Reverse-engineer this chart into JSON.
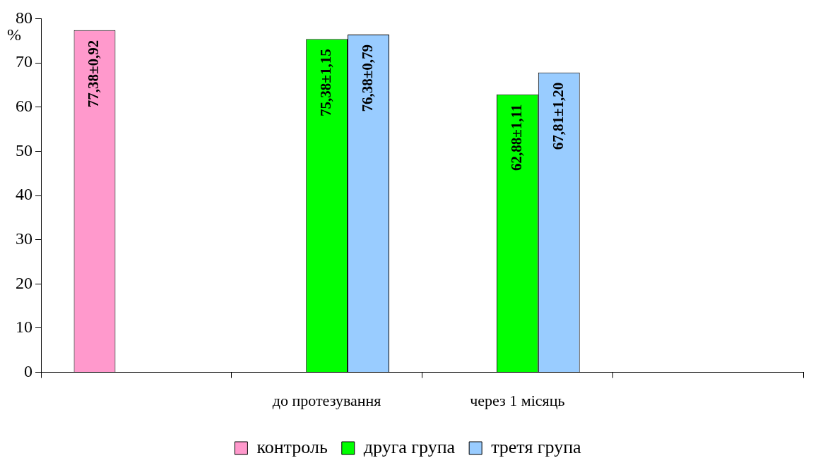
{
  "chart_data": {
    "type": "bar",
    "ylabel": "%",
    "categories": [
      null,
      "до протезування",
      "через 1 місяць",
      null
    ],
    "series": [
      {
        "name": "контроль",
        "color": "#ff99cc",
        "values": [
          77.38,
          null,
          null,
          null
        ],
        "value_labels": [
          "77,38±0,92",
          null,
          null,
          null
        ]
      },
      {
        "name": "друга група",
        "color": "#00ff00",
        "values": [
          null,
          75.38,
          62.88,
          null
        ],
        "value_labels": [
          null,
          "75,38±1,15",
          "62,88±1,11",
          null
        ]
      },
      {
        "name": "третя група",
        "color": "#99ccff",
        "values": [
          null,
          76.38,
          67.81,
          null
        ],
        "value_labels": [
          null,
          "76,38±0,79",
          "67,81±1,20",
          null
        ]
      }
    ],
    "ylim": [
      0,
      80
    ],
    "yticks": [
      0,
      10,
      20,
      30,
      40,
      50,
      60,
      70,
      80
    ],
    "grid": false,
    "legend": "bottom"
  }
}
